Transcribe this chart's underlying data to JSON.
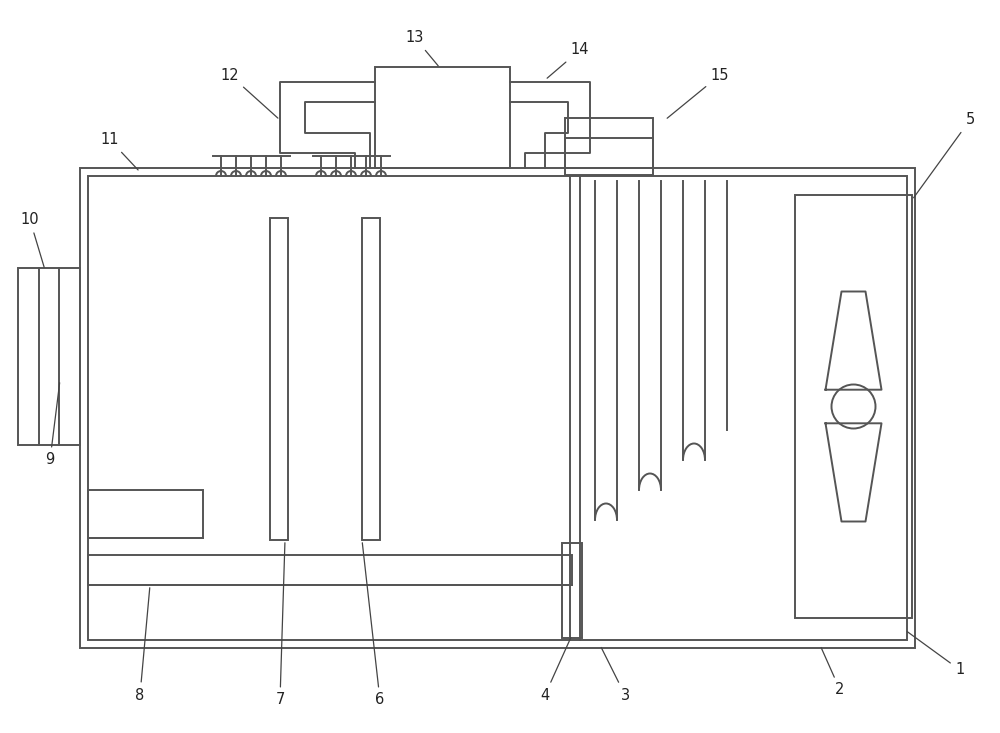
{
  "bg": "#ffffff",
  "lc": "#555555",
  "lw": 1.4,
  "alw": 0.9,
  "fs": 10.5
}
